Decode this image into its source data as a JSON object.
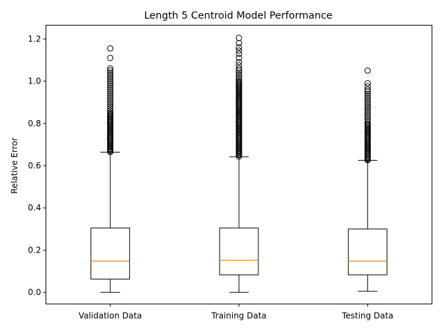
{
  "chart_data": {
    "type": "box",
    "title": "Length 5 Centroid Model Performance",
    "xlabel": "",
    "ylabel": "Relative Error",
    "ylim": [
      -0.055,
      1.265
    ],
    "yticks": [
      0.0,
      0.2,
      0.4,
      0.6,
      0.8,
      1.0,
      1.2
    ],
    "ytick_labels": [
      "0.0",
      "0.2",
      "0.4",
      "0.6",
      "0.8",
      "1.0",
      "1.2"
    ],
    "grid": false,
    "median_color": "#ff7f0e",
    "categories": [
      "Validation Data",
      "Training Data",
      "Testing Data"
    ],
    "boxes": [
      {
        "category": "Validation Data",
        "whisker_low": 0.0,
        "q1": 0.063,
        "median": 0.148,
        "q3": 0.305,
        "whisker_high": 0.664,
        "outliers": [
          0.665,
          0.67,
          0.675,
          0.68,
          0.685,
          0.69,
          0.695,
          0.7,
          0.705,
          0.71,
          0.715,
          0.72,
          0.725,
          0.73,
          0.735,
          0.74,
          0.745,
          0.75,
          0.755,
          0.76,
          0.765,
          0.77,
          0.775,
          0.78,
          0.785,
          0.79,
          0.795,
          0.8,
          0.805,
          0.81,
          0.815,
          0.82,
          0.825,
          0.83,
          0.835,
          0.84,
          0.845,
          0.85,
          0.86,
          0.87,
          0.88,
          0.89,
          0.9,
          0.91,
          0.92,
          0.93,
          0.94,
          0.95,
          0.96,
          0.97,
          0.98,
          0.99,
          1.0,
          1.01,
          1.02,
          1.03,
          1.04,
          1.05,
          1.06,
          1.11,
          1.155
        ]
      },
      {
        "category": "Training Data",
        "whisker_low": 0.0,
        "q1": 0.083,
        "median": 0.152,
        "q3": 0.305,
        "whisker_high": 0.642,
        "outliers": [
          0.643,
          0.65,
          0.655,
          0.66,
          0.665,
          0.67,
          0.675,
          0.68,
          0.685,
          0.69,
          0.695,
          0.7,
          0.705,
          0.71,
          0.715,
          0.72,
          0.725,
          0.73,
          0.735,
          0.74,
          0.745,
          0.75,
          0.755,
          0.76,
          0.765,
          0.77,
          0.775,
          0.78,
          0.785,
          0.79,
          0.795,
          0.8,
          0.805,
          0.81,
          0.815,
          0.82,
          0.825,
          0.83,
          0.835,
          0.84,
          0.845,
          0.85,
          0.855,
          0.86,
          0.865,
          0.87,
          0.875,
          0.88,
          0.885,
          0.89,
          0.895,
          0.9,
          0.905,
          0.91,
          0.915,
          0.92,
          0.925,
          0.93,
          0.935,
          0.94,
          0.945,
          0.95,
          0.955,
          0.96,
          0.965,
          0.97,
          0.975,
          0.98,
          0.985,
          0.99,
          0.995,
          1.0,
          1.01,
          1.02,
          1.03,
          1.04,
          1.05,
          1.06,
          1.075,
          1.09,
          1.11,
          1.13,
          1.145,
          1.16,
          1.18,
          1.205
        ]
      },
      {
        "category": "Testing Data",
        "whisker_low": 0.005,
        "q1": 0.083,
        "median": 0.148,
        "q3": 0.3,
        "whisker_high": 0.625,
        "outliers": [
          0.626,
          0.63,
          0.635,
          0.64,
          0.645,
          0.65,
          0.655,
          0.66,
          0.665,
          0.67,
          0.675,
          0.68,
          0.685,
          0.69,
          0.695,
          0.7,
          0.705,
          0.71,
          0.715,
          0.72,
          0.725,
          0.73,
          0.735,
          0.74,
          0.745,
          0.75,
          0.755,
          0.76,
          0.765,
          0.77,
          0.775,
          0.78,
          0.785,
          0.79,
          0.795,
          0.8,
          0.81,
          0.82,
          0.83,
          0.84,
          0.85,
          0.86,
          0.87,
          0.88,
          0.89,
          0.9,
          0.91,
          0.92,
          0.93,
          0.94,
          0.95,
          0.96,
          0.975,
          0.99,
          1.05
        ]
      }
    ]
  }
}
